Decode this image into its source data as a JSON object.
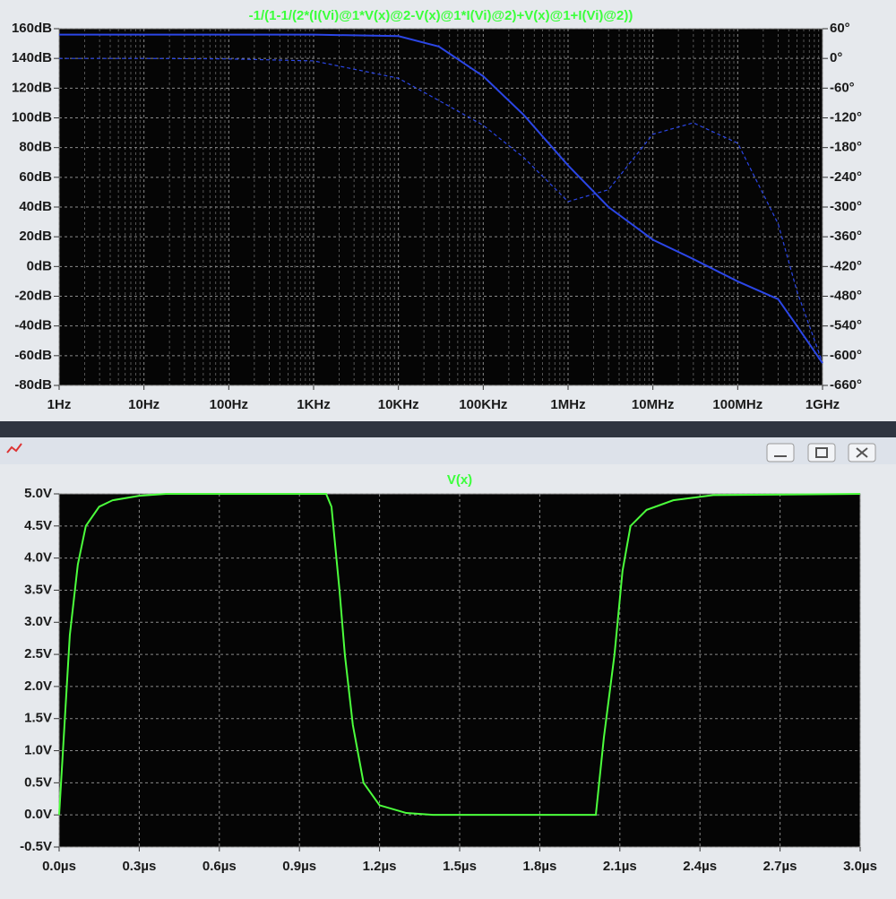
{
  "chart_data": [
    {
      "type": "line",
      "title": "-1/(1-1/(2*(I(Vi)@1*V(x)@2-V(x)@1*I(Vi)@2)+V(x)@1+I(Vi)@2))",
      "xscale": "log",
      "grid": true,
      "xlim": [
        1,
        1000000000
      ],
      "xticks": [
        {
          "value": 1,
          "label": "1Hz"
        },
        {
          "value": 10,
          "label": "10Hz"
        },
        {
          "value": 100,
          "label": "100Hz"
        },
        {
          "value": 1000,
          "label": "1KHz"
        },
        {
          "value": 10000,
          "label": "10KHz"
        },
        {
          "value": 100000,
          "label": "100KHz"
        },
        {
          "value": 1000000,
          "label": "1MHz"
        },
        {
          "value": 10000000,
          "label": "10MHz"
        },
        {
          "value": 100000000,
          "label": "100MHz"
        },
        {
          "value": 1000000000,
          "label": "1GHz"
        }
      ],
      "ylim": [
        -80,
        160
      ],
      "yticks": [
        {
          "value": 160,
          "label": "160dB"
        },
        {
          "value": 140,
          "label": "140dB"
        },
        {
          "value": 120,
          "label": "120dB"
        },
        {
          "value": 100,
          "label": "100dB"
        },
        {
          "value": 80,
          "label": "80dB"
        },
        {
          "value": 60,
          "label": "60dB"
        },
        {
          "value": 40,
          "label": "40dB"
        },
        {
          "value": 20,
          "label": "20dB"
        },
        {
          "value": 0,
          "label": "0dB"
        },
        {
          "value": -20,
          "label": "-20dB"
        },
        {
          "value": -40,
          "label": "-40dB"
        },
        {
          "value": -60,
          "label": "-60dB"
        },
        {
          "value": -80,
          "label": "-80dB"
        }
      ],
      "y2lim": [
        -660,
        60
      ],
      "y2ticks": [
        {
          "value": 60,
          "label": "60°"
        },
        {
          "value": 0,
          "label": "0°"
        },
        {
          "value": -60,
          "label": "-60°"
        },
        {
          "value": -120,
          "label": "-120°"
        },
        {
          "value": -180,
          "label": "-180°"
        },
        {
          "value": -240,
          "label": "-240°"
        },
        {
          "value": -300,
          "label": "-300°"
        },
        {
          "value": -360,
          "label": "-360°"
        },
        {
          "value": -420,
          "label": "-420°"
        },
        {
          "value": -480,
          "label": "-480°"
        },
        {
          "value": -540,
          "label": "-540°"
        },
        {
          "value": -600,
          "label": "-600°"
        },
        {
          "value": -660,
          "label": "-660°"
        }
      ],
      "series": [
        {
          "color": "#2b46e6",
          "line_style": "solid",
          "x": [
            1,
            10,
            100,
            1000,
            10000,
            30000,
            100000,
            300000,
            1000000,
            3000000,
            10000000,
            30000000,
            100000000,
            300000000,
            500000000,
            1000000000
          ],
          "values": [
            156,
            156,
            156,
            156,
            155,
            148,
            128,
            102,
            68,
            40,
            18,
            5,
            -10,
            -22,
            -40,
            -65
          ]
        },
        {
          "color": "#2b46e6",
          "line_style": "dashed",
          "axis": "y2",
          "x": [
            1,
            10,
            100,
            1000,
            10000,
            30000,
            100000,
            300000,
            1000000,
            3000000,
            10000000,
            30000000,
            100000000,
            300000000,
            500000000,
            1000000000
          ],
          "values": [
            0,
            0,
            -1,
            -5,
            -40,
            -85,
            -135,
            -200,
            -289,
            -265,
            -153,
            -130,
            -171,
            -334,
            -470,
            -614
          ]
        }
      ]
    },
    {
      "type": "line",
      "title": "V(x)",
      "grid": true,
      "xlim": [
        0,
        3
      ],
      "xticks": [
        {
          "value": 0,
          "label": "0.0µs"
        },
        {
          "value": 0.3,
          "label": "0.3µs"
        },
        {
          "value": 0.6,
          "label": "0.6µs"
        },
        {
          "value": 0.9,
          "label": "0.9µs"
        },
        {
          "value": 1.2,
          "label": "1.2µs"
        },
        {
          "value": 1.5,
          "label": "1.5µs"
        },
        {
          "value": 1.8,
          "label": "1.8µs"
        },
        {
          "value": 2.1,
          "label": "2.1µs"
        },
        {
          "value": 2.4,
          "label": "2.4µs"
        },
        {
          "value": 2.7,
          "label": "2.7µs"
        },
        {
          "value": 3,
          "label": "3.0µs"
        }
      ],
      "ylim": [
        -0.5,
        5
      ],
      "yticks": [
        {
          "value": 5,
          "label": "5.0V"
        },
        {
          "value": 4.5,
          "label": "4.5V"
        },
        {
          "value": 4,
          "label": "4.0V"
        },
        {
          "value": 3.5,
          "label": "3.5V"
        },
        {
          "value": 3,
          "label": "3.0V"
        },
        {
          "value": 2.5,
          "label": "2.5V"
        },
        {
          "value": 2,
          "label": "2.0V"
        },
        {
          "value": 1.5,
          "label": "1.5V"
        },
        {
          "value": 1,
          "label": "1.0V"
        },
        {
          "value": 0.5,
          "label": "0.5V"
        },
        {
          "value": 0,
          "label": "0.0V"
        },
        {
          "value": -0.5,
          "label": "-0.5V"
        }
      ],
      "series": [
        {
          "color": "#4cff3c",
          "line_style": "solid",
          "x": [
            0,
            0.02,
            0.04,
            0.07,
            0.1,
            0.15,
            0.2,
            0.3,
            0.4,
            1.0,
            1.02,
            1.05,
            1.07,
            1.1,
            1.14,
            1.2,
            1.3,
            1.4,
            2.01,
            2.04,
            2.08,
            2.11,
            2.14,
            2.2,
            2.3,
            2.45,
            3.0
          ],
          "values": [
            0,
            1.4,
            2.8,
            3.9,
            4.5,
            4.8,
            4.9,
            4.97,
            5,
            5,
            4.8,
            3.5,
            2.5,
            1.4,
            0.5,
            0.15,
            0.03,
            0,
            0,
            1.2,
            2.5,
            3.8,
            4.5,
            4.75,
            4.9,
            4.98,
            5
          ]
        }
      ]
    }
  ]
}
